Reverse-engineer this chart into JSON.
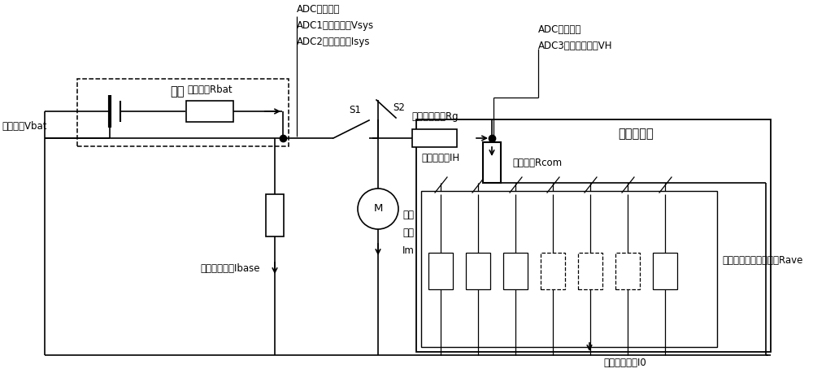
{
  "bg_color": "#ffffff",
  "line_color": "#000000",
  "fig_width": 10.0,
  "fig_height": 4.75,
  "labels": {
    "vbat": "电池电压Vbat",
    "battery_title": "电池",
    "rbat": "电池内阻Rbat",
    "adc_top_line1": "ADC采集点：",
    "adc_top_line2": "ADC1：系统电压Vsys",
    "adc_top_line3": "ADC2：系统电流Isys",
    "s1": "S1",
    "s2": "S2",
    "rg": "开关导通电阻Rg",
    "adc_right_line1": "ADC采集点：",
    "adc_right_line2": "ADC3：打印头电压VH",
    "printhead_current": "打印头电流IH",
    "thermal_title": "热敏打印头",
    "rcom": "共极电阻Rcom",
    "ibase": "系统基础电流Ibase",
    "motor_line1": "电机",
    "motor_line2": "电流",
    "motor_line3": "Im",
    "rave": "加热元件电路平均电阻Rave",
    "i0": "加热元件电流I0",
    "M": "M"
  }
}
